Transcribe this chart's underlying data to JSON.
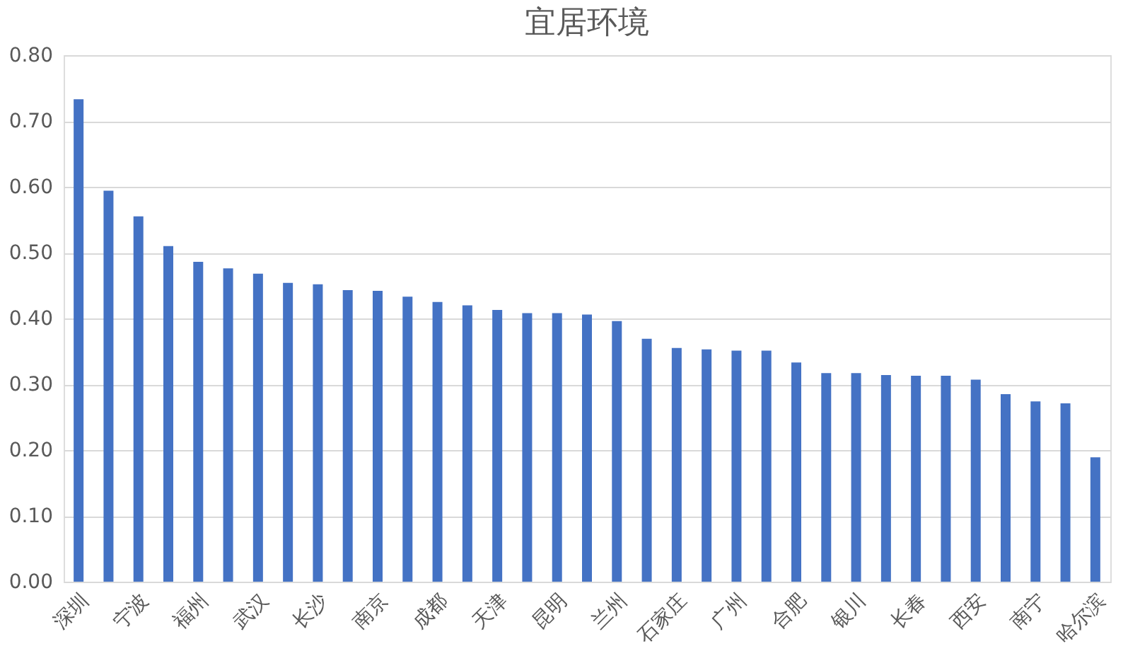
{
  "chart_data": {
    "type": "bar",
    "title": "宜居环境",
    "categories": [
      "深圳",
      null,
      "宁波",
      null,
      "福州",
      null,
      "武汉",
      null,
      "长沙",
      null,
      "南京",
      null,
      "成都",
      null,
      "天津",
      null,
      "昆明",
      null,
      "兰州",
      null,
      "石家庄",
      null,
      "广州",
      null,
      "合肥",
      null,
      "银川",
      null,
      "长春",
      null,
      "西安",
      null,
      "南宁",
      null,
      "哈尔滨"
    ],
    "values": [
      0.733,
      0.594,
      0.555,
      0.51,
      0.486,
      0.476,
      0.468,
      0.454,
      0.452,
      0.443,
      0.442,
      0.433,
      0.425,
      0.42,
      0.413,
      0.408,
      0.408,
      0.406,
      0.396,
      0.369,
      0.355,
      0.353,
      0.351,
      0.351,
      0.333,
      0.317,
      0.317,
      0.314,
      0.313,
      0.313,
      0.307,
      0.285,
      0.274,
      0.271,
      0.189
    ],
    "color": "#4472c4",
    "ylim": [
      0,
      0.8
    ],
    "yticks": [
      {
        "value": 0,
        "label": "0.00"
      },
      {
        "value": 0.1,
        "label": "0.10"
      },
      {
        "value": 0.2,
        "label": "0.20"
      },
      {
        "value": 0.3,
        "label": "0.30"
      },
      {
        "value": 0.4,
        "label": "0.40"
      },
      {
        "value": 0.5,
        "label": "0.50"
      },
      {
        "value": 0.6,
        "label": "0.60"
      },
      {
        "value": 0.7,
        "label": "0.70"
      },
      {
        "value": 0.8,
        "label": "0.80"
      }
    ],
    "grid": "y"
  }
}
